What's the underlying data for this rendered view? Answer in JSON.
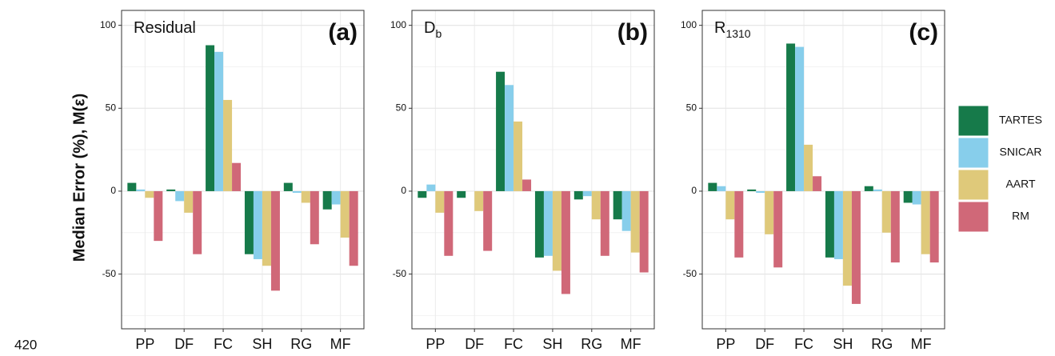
{
  "margin_text": "420",
  "chart_data": [
    {
      "type": "bar",
      "label": "Residual",
      "tag": "(a)",
      "ylabel": "Median Error (%), M(ε)",
      "categories": [
        "PP",
        "DF",
        "FC",
        "SH",
        "RG",
        "MF"
      ],
      "series": [
        {
          "name": "TARTES",
          "color": "#167a4a",
          "values": [
            5,
            1,
            88,
            -38,
            5,
            -11
          ]
        },
        {
          "name": "SNICAR",
          "color": "#87ceeb",
          "values": [
            1,
            -6,
            84,
            -41,
            -1,
            -8
          ]
        },
        {
          "name": "AART",
          "color": "#dfc97a",
          "values": [
            -4,
            -13,
            55,
            -45,
            -7,
            -28
          ]
        },
        {
          "name": "RM",
          "color": "#d06878",
          "values": [
            -30,
            -38,
            17,
            -60,
            -32,
            -45
          ]
        }
      ],
      "ylim": [
        -83,
        109
      ],
      "yticks": [
        -50,
        0,
        50,
        100
      ],
      "minor_yticks": [
        -75,
        -25,
        25,
        75
      ],
      "grid": true
    },
    {
      "type": "bar",
      "label": "D",
      "label_subscript": "b",
      "tag": "(b)",
      "categories": [
        "PP",
        "DF",
        "FC",
        "SH",
        "RG",
        "MF"
      ],
      "series": [
        {
          "name": "TARTES",
          "color": "#167a4a",
          "values": [
            -4,
            -4,
            72,
            -40,
            -5,
            -17
          ]
        },
        {
          "name": "SNICAR",
          "color": "#87ceeb",
          "values": [
            4,
            0,
            64,
            -39,
            -3,
            -24
          ]
        },
        {
          "name": "AART",
          "color": "#dfc97a",
          "values": [
            -13,
            -12,
            42,
            -48,
            -17,
            -37
          ]
        },
        {
          "name": "RM",
          "color": "#d06878",
          "values": [
            -39,
            -36,
            7,
            -62,
            -39,
            -49
          ]
        }
      ],
      "ylim": [
        -83,
        109
      ],
      "yticks": [
        -50,
        0,
        50,
        100
      ],
      "minor_yticks": [
        -75,
        -25,
        25,
        75
      ],
      "grid": true
    },
    {
      "type": "bar",
      "label": "R",
      "label_subscript": "1310",
      "tag": "(c)",
      "categories": [
        "PP",
        "DF",
        "FC",
        "SH",
        "RG",
        "MF"
      ],
      "series": [
        {
          "name": "TARTES",
          "color": "#167a4a",
          "values": [
            5,
            1,
            89,
            -40,
            3,
            -7
          ]
        },
        {
          "name": "SNICAR",
          "color": "#87ceeb",
          "values": [
            3,
            -1,
            87,
            -41,
            1,
            -8
          ]
        },
        {
          "name": "AART",
          "color": "#dfc97a",
          "values": [
            -17,
            -26,
            28,
            -57,
            -25,
            -38
          ]
        },
        {
          "name": "RM",
          "color": "#d06878",
          "values": [
            -40,
            -46,
            9,
            -68,
            -43,
            -43
          ]
        }
      ],
      "ylim": [
        -83,
        109
      ],
      "yticks": [
        -50,
        0,
        50,
        100
      ],
      "minor_yticks": [
        -75,
        -25,
        25,
        75
      ],
      "grid": true
    }
  ]
}
